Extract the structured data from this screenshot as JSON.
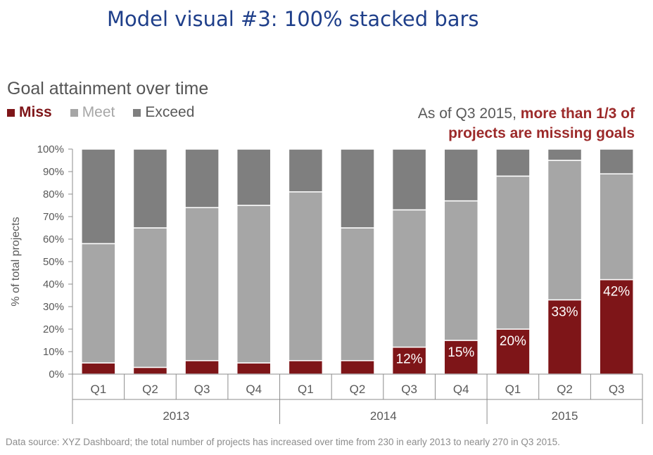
{
  "page": {
    "slide_title": "Model visual #3: 100% stacked bars",
    "chart_title": "Goal attainment over time",
    "callout": {
      "text_before": "As of Q3 2015, ",
      "text_emphasis_line1": "more than 1/3 of",
      "text_emphasis_line2": "projects are missing goals"
    },
    "source_note": "Data source: XYZ Dashboard; the total number of projects has increased over time from 230 in early 2013 to nearly 270 in Q3 2015."
  },
  "legend": [
    {
      "label": "Miss",
      "color": "#7e1518"
    },
    {
      "label": "Meet",
      "color": "#a6a6a6"
    },
    {
      "label": "Exceed",
      "color": "#7f7f7f"
    }
  ],
  "colors": {
    "miss": "#7e1518",
    "meet": "#a6a6a6",
    "exceed": "#7f7f7f",
    "axis_text": "#595959",
    "axis_line": "#8c8c8c"
  },
  "chart_data": {
    "type": "bar",
    "stacked": true,
    "normalized": true,
    "title": "Goal attainment over time",
    "ylabel": "% of total projects",
    "xlabel": "",
    "ylim": [
      0,
      100
    ],
    "yticks": [
      "0%",
      "10%",
      "20%",
      "30%",
      "40%",
      "50%",
      "60%",
      "70%",
      "80%",
      "90%",
      "100%"
    ],
    "categories": [
      "Q1",
      "Q2",
      "Q3",
      "Q4",
      "Q1",
      "Q2",
      "Q3",
      "Q4",
      "Q1",
      "Q2",
      "Q3"
    ],
    "groups": [
      {
        "label": "2013",
        "count": 4
      },
      {
        "label": "2014",
        "count": 4
      },
      {
        "label": "2015",
        "count": 3
      }
    ],
    "series": [
      {
        "name": "Miss",
        "values": [
          5,
          3,
          6,
          5,
          6,
          6,
          12,
          15,
          20,
          33,
          42
        ]
      },
      {
        "name": "Meet",
        "values": [
          53,
          62,
          68,
          70,
          75,
          59,
          61,
          62,
          68,
          62,
          47
        ]
      },
      {
        "name": "Exceed",
        "values": [
          42,
          35,
          26,
          25,
          19,
          35,
          27,
          23,
          12,
          5,
          11
        ]
      }
    ],
    "data_labels": [
      "",
      "",
      "",
      "",
      "",
      "",
      "12%",
      "15%",
      "20%",
      "33%",
      "42%"
    ],
    "legend_position": "top-left",
    "grid": false
  }
}
